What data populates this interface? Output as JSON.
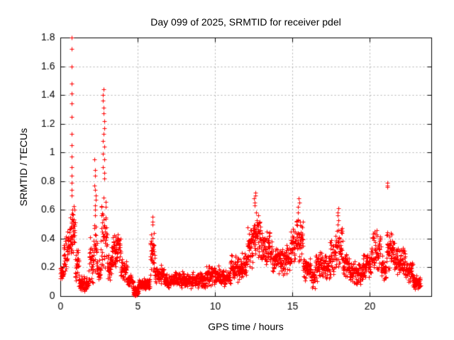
{
  "figure": {
    "title": "Day 099 of 2025, SRMTID for receiver pdel",
    "xlabel": "GPS time / hours",
    "ylabel": "SRMTID / TECUs"
  },
  "chart_data": {
    "type": "scatter",
    "title": "Day 099 of 2025, SRMTID for receiver pdel",
    "xlabel": "GPS time / hours",
    "ylabel": "SRMTID / TECUs",
    "xlim": [
      0,
      24
    ],
    "ylim": [
      0,
      1.8
    ],
    "xticks": {
      "values": [
        0,
        5,
        10,
        15,
        20
      ],
      "labels": [
        "0",
        "5",
        "10",
        "15",
        "20"
      ]
    },
    "yticks": {
      "values": [
        0,
        0.2,
        0.4,
        0.6,
        0.8,
        1.0,
        1.2,
        1.4,
        1.6,
        1.8
      ],
      "labels": [
        "0",
        "0.2",
        "0.4",
        "0.6",
        "0.8",
        "1",
        "1.2",
        "1.4",
        "1.6",
        "1.8"
      ]
    },
    "grid": {
      "shown": true,
      "color": "#b0b0b0",
      "dashed": true
    },
    "legend": "none",
    "marker": {
      "shape": "plus",
      "color": "#ff0000",
      "size": 7
    },
    "series_name": "SRMTID",
    "data_start_hour": 0.0,
    "data_end_hour": 23.3,
    "seed": 20250099,
    "band_segments": [
      [
        0.0,
        0.2,
        0.08,
        0.22,
        26
      ],
      [
        0.2,
        0.45,
        0.14,
        0.42,
        30
      ],
      [
        0.45,
        0.68,
        0.22,
        0.55,
        28
      ],
      [
        0.68,
        0.95,
        0.28,
        0.66,
        40
      ],
      [
        0.95,
        1.2,
        0.1,
        0.36,
        28
      ],
      [
        1.2,
        1.85,
        0.03,
        0.14,
        70
      ],
      [
        1.85,
        2.15,
        0.08,
        0.42,
        32
      ],
      [
        2.15,
        2.42,
        0.14,
        0.52,
        30
      ],
      [
        2.42,
        2.62,
        0.08,
        0.26,
        22
      ],
      [
        2.62,
        3.02,
        0.15,
        0.78,
        46
      ],
      [
        3.02,
        3.32,
        0.1,
        0.3,
        32
      ],
      [
        3.32,
        3.62,
        0.18,
        0.44,
        34
      ],
      [
        3.62,
        3.9,
        0.22,
        0.48,
        32
      ],
      [
        3.9,
        4.3,
        0.1,
        0.28,
        42
      ],
      [
        4.3,
        4.72,
        0.05,
        0.16,
        44
      ],
      [
        4.72,
        5.05,
        0.005,
        0.07,
        42
      ],
      [
        4.78,
        4.98,
        0.004,
        0.028,
        26
      ],
      [
        5.05,
        5.8,
        0.04,
        0.13,
        78
      ],
      [
        5.8,
        6.1,
        0.12,
        0.48,
        36
      ],
      [
        6.1,
        6.7,
        0.08,
        0.22,
        60
      ],
      [
        6.7,
        7.4,
        0.05,
        0.16,
        72
      ],
      [
        7.4,
        8.2,
        0.06,
        0.18,
        82
      ],
      [
        8.2,
        9.4,
        0.05,
        0.17,
        118
      ],
      [
        9.4,
        10.3,
        0.06,
        0.23,
        92
      ],
      [
        10.3,
        11.0,
        0.06,
        0.2,
        70
      ],
      [
        11.0,
        11.7,
        0.09,
        0.3,
        72
      ],
      [
        11.7,
        12.1,
        0.12,
        0.34,
        42
      ],
      [
        12.1,
        12.45,
        0.18,
        0.5,
        38
      ],
      [
        12.45,
        12.95,
        0.25,
        0.62,
        56
      ],
      [
        12.95,
        13.3,
        0.18,
        0.45,
        38
      ],
      [
        13.3,
        13.7,
        0.22,
        0.46,
        42
      ],
      [
        13.7,
        14.1,
        0.15,
        0.36,
        42
      ],
      [
        14.1,
        14.9,
        0.14,
        0.36,
        82
      ],
      [
        14.9,
        15.2,
        0.18,
        0.52,
        32
      ],
      [
        15.2,
        15.7,
        0.22,
        0.56,
        54
      ],
      [
        15.7,
        16.2,
        0.1,
        0.3,
        52
      ],
      [
        16.2,
        16.5,
        0.05,
        0.2,
        30
      ],
      [
        16.5,
        16.9,
        0.1,
        0.33,
        42
      ],
      [
        16.9,
        17.4,
        0.1,
        0.3,
        50
      ],
      [
        17.4,
        17.8,
        0.12,
        0.4,
        42
      ],
      [
        17.8,
        18.25,
        0.18,
        0.52,
        48
      ],
      [
        18.25,
        18.7,
        0.12,
        0.3,
        46
      ],
      [
        18.7,
        19.5,
        0.07,
        0.25,
        80
      ],
      [
        19.5,
        20.1,
        0.1,
        0.32,
        62
      ],
      [
        20.1,
        20.75,
        0.15,
        0.47,
        66
      ],
      [
        20.75,
        21.1,
        0.08,
        0.3,
        36
      ],
      [
        21.1,
        21.6,
        0.18,
        0.52,
        54
      ],
      [
        21.6,
        22.3,
        0.13,
        0.35,
        72
      ],
      [
        22.3,
        22.8,
        0.09,
        0.26,
        52
      ],
      [
        22.8,
        23.3,
        0.04,
        0.15,
        52
      ]
    ],
    "spike_columns": [
      {
        "x": 0.73,
        "jitter": 0.02,
        "ys": [
          0.7,
          0.74,
          0.79,
          0.84,
          0.9,
          0.97,
          1.05,
          1.13,
          1.25,
          1.34,
          1.41,
          1.48,
          1.6,
          1.72,
          1.8
        ]
      },
      {
        "x": 2.24,
        "jitter": 0.05,
        "ys": [
          0.56,
          0.6,
          0.63,
          0.67,
          0.7,
          0.74,
          0.77,
          0.84,
          0.88,
          0.95
        ]
      },
      {
        "x": 2.8,
        "jitter": 0.06,
        "ys": [
          0.82,
          0.86,
          0.9,
          0.95,
          0.99,
          1.04,
          1.08,
          1.13,
          1.17,
          1.22,
          1.27,
          1.31,
          1.36,
          1.4,
          1.44
        ]
      },
      {
        "x": 5.98,
        "jitter": 0.03,
        "ys": [
          0.5,
          0.52,
          0.55
        ]
      },
      {
        "x": 12.62,
        "jitter": 0.1,
        "ys": [
          0.63,
          0.65,
          0.68,
          0.7,
          0.72
        ]
      },
      {
        "x": 15.42,
        "jitter": 0.08,
        "ys": [
          0.58,
          0.62,
          0.65,
          0.68
        ]
      },
      {
        "x": 18.0,
        "jitter": 0.06,
        "ys": [
          0.53,
          0.56,
          0.58,
          0.61
        ]
      },
      {
        "x": 21.15,
        "jitter": 0.02,
        "ys": [
          0.76,
          0.77,
          0.79
        ]
      }
    ]
  }
}
